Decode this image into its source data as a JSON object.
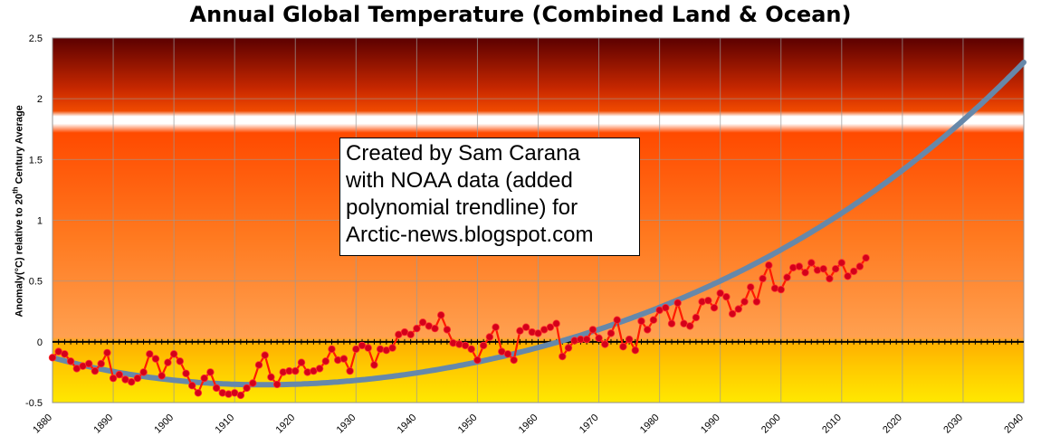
{
  "chart_data": {
    "type": "line",
    "title": "Annual Global Temperature (Combined Land & Ocean)",
    "ylabel": {
      "pre": "Anomaly(°C) relative to 20",
      "sup": "th",
      "post": " Century Average"
    },
    "xlabel": "",
    "xlim": [
      1880,
      2040
    ],
    "ylim": [
      -0.5,
      2.5
    ],
    "x_ticks": [
      "1880",
      "1890",
      "1900",
      "1910",
      "1920",
      "1930",
      "1940",
      "1950",
      "1960",
      "1970",
      "1980",
      "1990",
      "2000",
      "2010",
      "2020",
      "2030",
      "2040"
    ],
    "y_ticks": [
      "-0.5",
      "0",
      "0.5",
      "1",
      "1.5",
      "2",
      "2.5"
    ],
    "y_tick_values": [
      -0.5,
      0,
      0.5,
      1,
      1.5,
      2,
      2.5
    ],
    "grid": true,
    "annotation": [
      "Created by Sam Carana",
      "with NOAA data (added",
      "polynomial trendline) for",
      "Arctic-news.blogspot.com"
    ],
    "series": [
      {
        "x_start": 1880,
        "colors": {
          "line": "#ff1a00",
          "marker": "#d4001a"
        },
        "values": [
          -0.13,
          -0.08,
          -0.1,
          -0.16,
          -0.22,
          -0.2,
          -0.18,
          -0.24,
          -0.18,
          -0.09,
          -0.3,
          -0.27,
          -0.31,
          -0.33,
          -0.3,
          -0.25,
          -0.1,
          -0.14,
          -0.28,
          -0.17,
          -0.1,
          -0.16,
          -0.26,
          -0.36,
          -0.42,
          -0.3,
          -0.25,
          -0.38,
          -0.42,
          -0.43,
          -0.42,
          -0.44,
          -0.38,
          -0.34,
          -0.19,
          -0.11,
          -0.29,
          -0.35,
          -0.25,
          -0.24,
          -0.24,
          -0.17,
          -0.25,
          -0.24,
          -0.22,
          -0.16,
          -0.06,
          -0.15,
          -0.14,
          -0.24,
          -0.06,
          -0.03,
          -0.05,
          -0.19,
          -0.06,
          -0.07,
          -0.05,
          0.06,
          0.08,
          0.06,
          0.11,
          0.16,
          0.13,
          0.11,
          0.22,
          0.1,
          -0.01,
          -0.02,
          -0.03,
          -0.06,
          -0.15,
          -0.03,
          0.04,
          0.12,
          -0.08,
          -0.1,
          -0.15,
          0.09,
          0.12,
          0.08,
          0.07,
          0.1,
          0.12,
          0.15,
          -0.12,
          -0.05,
          0.01,
          0.02,
          0.02,
          0.1,
          0.03,
          -0.02,
          0.07,
          0.18,
          -0.04,
          0.02,
          -0.07,
          0.17,
          0.1,
          0.18,
          0.26,
          0.28,
          0.15,
          0.32,
          0.15,
          0.13,
          0.2,
          0.33,
          0.34,
          0.28,
          0.4,
          0.37,
          0.23,
          0.27,
          0.33,
          0.45,
          0.33,
          0.52,
          0.63,
          0.44,
          0.43,
          0.53,
          0.61,
          0.62,
          0.57,
          0.65,
          0.59,
          0.6,
          0.52,
          0.6,
          0.65,
          0.54,
          0.58,
          0.62,
          0.69
        ]
      },
      {
        "type": "polynomial-trendline",
        "colors": {
          "line": "#6688aa"
        },
        "coefficients": [
          -2.1,
          2.6,
          -0.45
        ]
      }
    ],
    "colors": {
      "hot": "#6a0000",
      "warm": "#ff4a00",
      "cool": "#ffd21a",
      "band": "#ffffff"
    }
  }
}
